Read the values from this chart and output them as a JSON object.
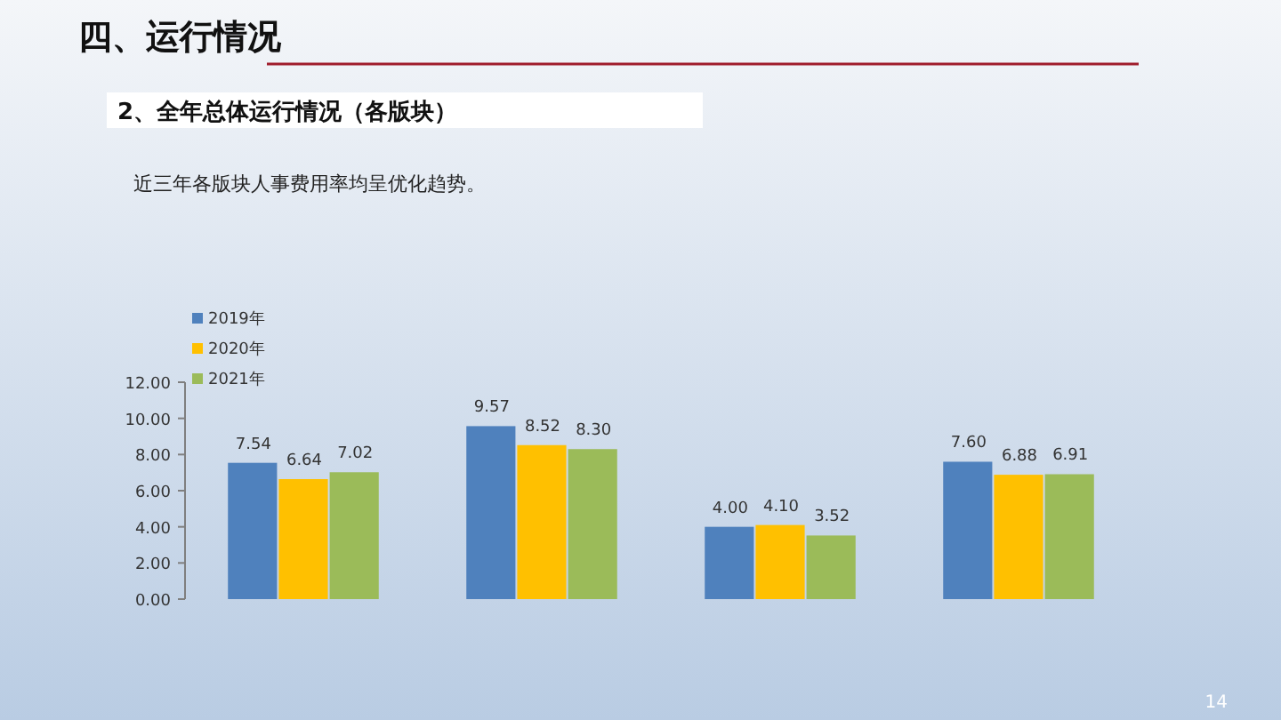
{
  "chart_data": {
    "type": "bar",
    "title": "四、运行情况",
    "subtitle": "2、全年总体运行情况（各版块）",
    "annotations": [
      "近三年各版块人事费用率均呈优化趋势。",
      "14"
    ],
    "categories": [
      null,
      null,
      null,
      null
    ],
    "series": [
      {
        "name": "2019年",
        "color": "#4f81bd",
        "values": [
          7.54,
          9.57,
          4.0,
          7.6
        ]
      },
      {
        "name": "2020年",
        "color": "#ffc000",
        "values": [
          6.64,
          8.52,
          4.1,
          6.88
        ]
      },
      {
        "name": "2021年",
        "color": "#9bbb59",
        "values": [
          7.02,
          8.3,
          3.52,
          6.91
        ]
      }
    ],
    "ylim": [
      0,
      12
    ],
    "yticks": [
      {
        "value": 0,
        "label": "0.00"
      },
      {
        "value": 2,
        "label": "2.00"
      },
      {
        "value": 4,
        "label": "4.00"
      },
      {
        "value": 6,
        "label": "6.00"
      },
      {
        "value": 8,
        "label": "8.00"
      },
      {
        "value": 10,
        "label": "10.00"
      },
      {
        "value": 12,
        "label": "12.00"
      }
    ],
    "value_labels": [
      [
        "7.54",
        "9.57",
        "4.00",
        "7.60"
      ],
      [
        "6.64",
        "8.52",
        "4.10",
        "6.88"
      ],
      [
        "7.02",
        "8.30",
        "3.52",
        "6.91"
      ]
    ],
    "legend": "top left"
  }
}
